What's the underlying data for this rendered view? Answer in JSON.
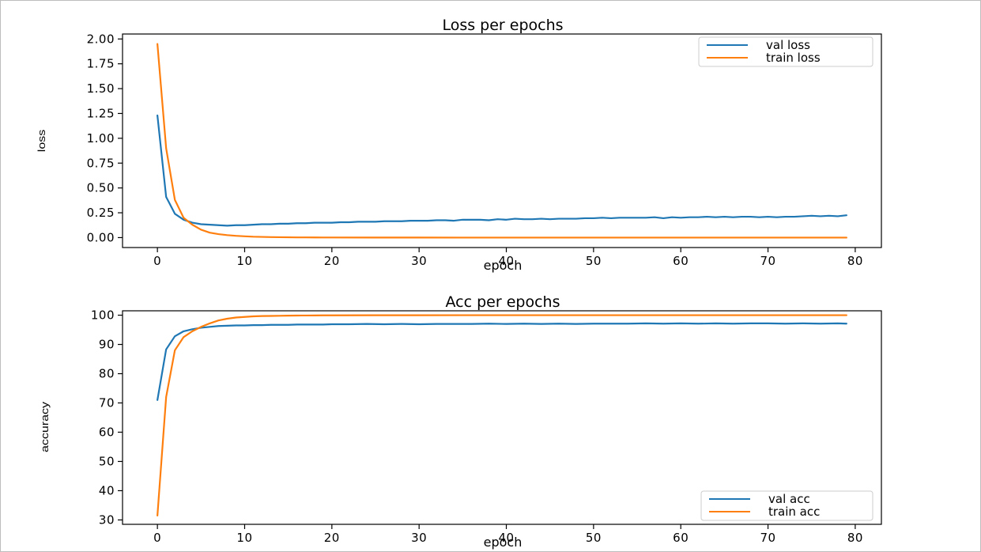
{
  "chart_data": [
    {
      "type": "line",
      "title": "Loss per epochs",
      "xlabel": "epoch",
      "ylabel": "loss",
      "xlim": [
        -4,
        83
      ],
      "ylim": [
        -0.1,
        2.05
      ],
      "xticks": [
        0,
        10,
        20,
        30,
        40,
        50,
        60,
        70,
        80
      ],
      "yticks": [
        0.0,
        0.25,
        0.5,
        0.75,
        1.0,
        1.25,
        1.5,
        1.75,
        2.0
      ],
      "ytick_labels": [
        "0.00",
        "0.25",
        "0.50",
        "0.75",
        "1.00",
        "1.25",
        "1.50",
        "1.75",
        "2.00"
      ],
      "legend_position": "upper right",
      "series": [
        {
          "name": "val loss",
          "color": "#1f77b4",
          "x": [
            0,
            1,
            2,
            3,
            4,
            5,
            6,
            7,
            8,
            9,
            10,
            11,
            12,
            13,
            14,
            15,
            16,
            17,
            18,
            19,
            20,
            21,
            22,
            23,
            24,
            25,
            26,
            27,
            28,
            29,
            30,
            31,
            32,
            33,
            34,
            35,
            36,
            37,
            38,
            39,
            40,
            41,
            42,
            43,
            44,
            45,
            46,
            47,
            48,
            49,
            50,
            51,
            52,
            53,
            54,
            55,
            56,
            57,
            58,
            59,
            60,
            61,
            62,
            63,
            64,
            65,
            66,
            67,
            68,
            69,
            70,
            71,
            72,
            73,
            74,
            75,
            76,
            77,
            78,
            79
          ],
          "y": [
            1.23,
            0.41,
            0.24,
            0.18,
            0.15,
            0.135,
            0.13,
            0.125,
            0.12,
            0.125,
            0.125,
            0.13,
            0.135,
            0.135,
            0.14,
            0.14,
            0.145,
            0.145,
            0.15,
            0.15,
            0.15,
            0.155,
            0.155,
            0.16,
            0.16,
            0.16,
            0.165,
            0.165,
            0.165,
            0.17,
            0.17,
            0.17,
            0.175,
            0.175,
            0.17,
            0.18,
            0.18,
            0.18,
            0.175,
            0.185,
            0.18,
            0.19,
            0.185,
            0.185,
            0.19,
            0.185,
            0.19,
            0.19,
            0.19,
            0.195,
            0.195,
            0.2,
            0.195,
            0.2,
            0.2,
            0.2,
            0.2,
            0.205,
            0.195,
            0.205,
            0.2,
            0.205,
            0.205,
            0.21,
            0.205,
            0.21,
            0.205,
            0.21,
            0.21,
            0.205,
            0.21,
            0.205,
            0.21,
            0.21,
            0.215,
            0.22,
            0.215,
            0.22,
            0.215,
            0.225
          ]
        },
        {
          "name": "train loss",
          "color": "#ff7f0e",
          "x": [
            0,
            1,
            2,
            3,
            4,
            5,
            6,
            7,
            8,
            9,
            10,
            11,
            12,
            13,
            14,
            15,
            16,
            17,
            18,
            19,
            20,
            25,
            30,
            35,
            40,
            45,
            50,
            55,
            60,
            65,
            70,
            75,
            79
          ],
          "y": [
            1.95,
            0.9,
            0.38,
            0.2,
            0.13,
            0.08,
            0.05,
            0.035,
            0.025,
            0.018,
            0.013,
            0.009,
            0.007,
            0.005,
            0.004,
            0.003,
            0.002,
            0.002,
            0.0015,
            0.001,
            0.001,
            0.0005,
            0.0003,
            0.0002,
            0.0001,
            0.0001,
            0.0,
            0.0,
            0.0,
            0.0,
            0.0,
            0.0,
            0.0
          ]
        }
      ]
    },
    {
      "type": "line",
      "title": "Acc per epochs",
      "xlabel": "epoch",
      "ylabel": "accuracy",
      "xlim": [
        -4,
        83
      ],
      "ylim": [
        28.5,
        101.5
      ],
      "xticks": [
        0,
        10,
        20,
        30,
        40,
        50,
        60,
        70,
        80
      ],
      "yticks": [
        30,
        40,
        50,
        60,
        70,
        80,
        90,
        100
      ],
      "ytick_labels": [
        "30",
        "40",
        "50",
        "60",
        "70",
        "80",
        "90",
        "100"
      ],
      "legend_position": "lower right",
      "series": [
        {
          "name": "val acc",
          "color": "#1f77b4",
          "x": [
            0,
            1,
            2,
            3,
            4,
            5,
            6,
            7,
            8,
            9,
            10,
            11,
            12,
            13,
            14,
            15,
            16,
            17,
            18,
            19,
            20,
            22,
            24,
            26,
            28,
            30,
            32,
            34,
            36,
            38,
            40,
            42,
            44,
            46,
            48,
            50,
            52,
            54,
            56,
            58,
            60,
            62,
            64,
            66,
            68,
            70,
            72,
            74,
            76,
            78,
            79
          ],
          "y": [
            71,
            88.3,
            92.8,
            94.5,
            95.2,
            95.7,
            96.0,
            96.3,
            96.4,
            96.5,
            96.5,
            96.6,
            96.6,
            96.7,
            96.7,
            96.7,
            96.8,
            96.8,
            96.8,
            96.8,
            96.9,
            96.9,
            97.0,
            96.9,
            97.0,
            96.9,
            97.0,
            97.0,
            97.0,
            97.1,
            97.0,
            97.1,
            97.0,
            97.1,
            97.0,
            97.1,
            97.1,
            97.1,
            97.2,
            97.1,
            97.2,
            97.1,
            97.2,
            97.1,
            97.2,
            97.2,
            97.1,
            97.2,
            97.1,
            97.2,
            97.1
          ]
        },
        {
          "name": "train acc",
          "color": "#ff7f0e",
          "x": [
            0,
            1,
            2,
            3,
            4,
            5,
            6,
            7,
            8,
            9,
            10,
            11,
            12,
            13,
            14,
            15,
            16,
            17,
            18,
            19,
            20,
            25,
            30,
            35,
            40,
            45,
            50,
            55,
            60,
            65,
            70,
            75,
            79
          ],
          "y": [
            31.5,
            72,
            88,
            92.5,
            94.5,
            96.0,
            97.2,
            98.2,
            98.8,
            99.2,
            99.4,
            99.6,
            99.7,
            99.75,
            99.8,
            99.85,
            99.88,
            99.9,
            99.92,
            99.94,
            99.95,
            99.97,
            99.98,
            99.99,
            100,
            100,
            100,
            100,
            100,
            100,
            100,
            100,
            100
          ]
        }
      ]
    }
  ]
}
